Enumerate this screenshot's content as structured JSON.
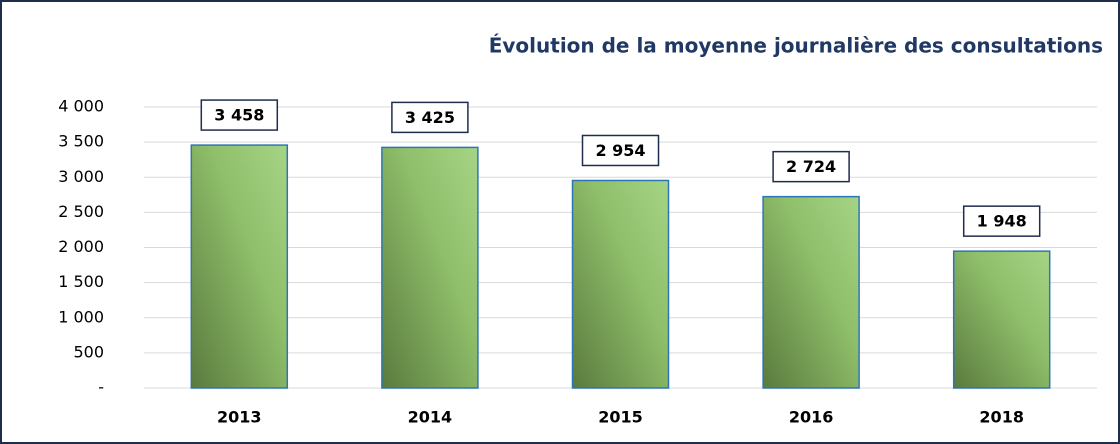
{
  "chart_data": {
    "type": "bar",
    "title": "Évolution de la moyenne journalière des consultations",
    "categories": [
      "2013",
      "2014",
      "2015",
      "2016",
      "2018"
    ],
    "values": [
      3458,
      3425,
      2954,
      2724,
      1948
    ],
    "value_labels": [
      "3 458",
      "3 425",
      "2 954",
      "2 724",
      "1 948"
    ],
    "color": "#8fbf6a",
    "ylim": [
      0,
      4000
    ],
    "yticks": [
      {
        "value": 0,
        "label": "-"
      },
      {
        "value": 500,
        "label": "500"
      },
      {
        "value": 1000,
        "label": "1 000"
      },
      {
        "value": 1500,
        "label": "1 500"
      },
      {
        "value": 2000,
        "label": "2 000"
      },
      {
        "value": 2500,
        "label": "2 500"
      },
      {
        "value": 3000,
        "label": "3 000"
      },
      {
        "value": 3500,
        "label": "3 500"
      },
      {
        "value": 4000,
        "label": "4 000"
      }
    ],
    "grid": true
  }
}
